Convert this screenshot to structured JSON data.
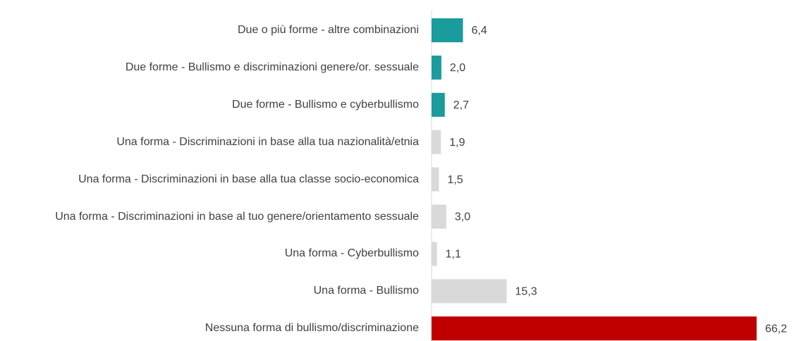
{
  "chart_data": {
    "type": "bar",
    "orientation": "horizontal",
    "categories": [
      "Due o più forme - altre combinazioni",
      "Due forme - Bullismo e discriminazioni genere/or. sessuale",
      "Due forme - Bullismo e cyberbullismo",
      "Una forma - Discriminazioni in base alla tua nazionalità/etnia",
      "Una forma - Discriminazioni in base alla tua classe socio-economica",
      "Una forma - Discriminazioni in base al tuo genere/orientamento sessuale",
      "Una forma - Cyberbullismo",
      "Una forma - Bullismo",
      "Nessuna forma di bullismo/discriminazione"
    ],
    "values": [
      6.4,
      2.0,
      2.7,
      1.9,
      1.5,
      3.0,
      1.1,
      15.3,
      66.2
    ],
    "value_labels": [
      "6,4",
      "2,0",
      "2,7",
      "1,9",
      "1,5",
      "3,0",
      "1,1",
      "15,3",
      "66,2"
    ],
    "colors": [
      "#1a9c9c",
      "#1a9c9c",
      "#1a9c9c",
      "#d9d9d9",
      "#d9d9d9",
      "#d9d9d9",
      "#d9d9d9",
      "#d9d9d9",
      "#c00000"
    ]
  }
}
